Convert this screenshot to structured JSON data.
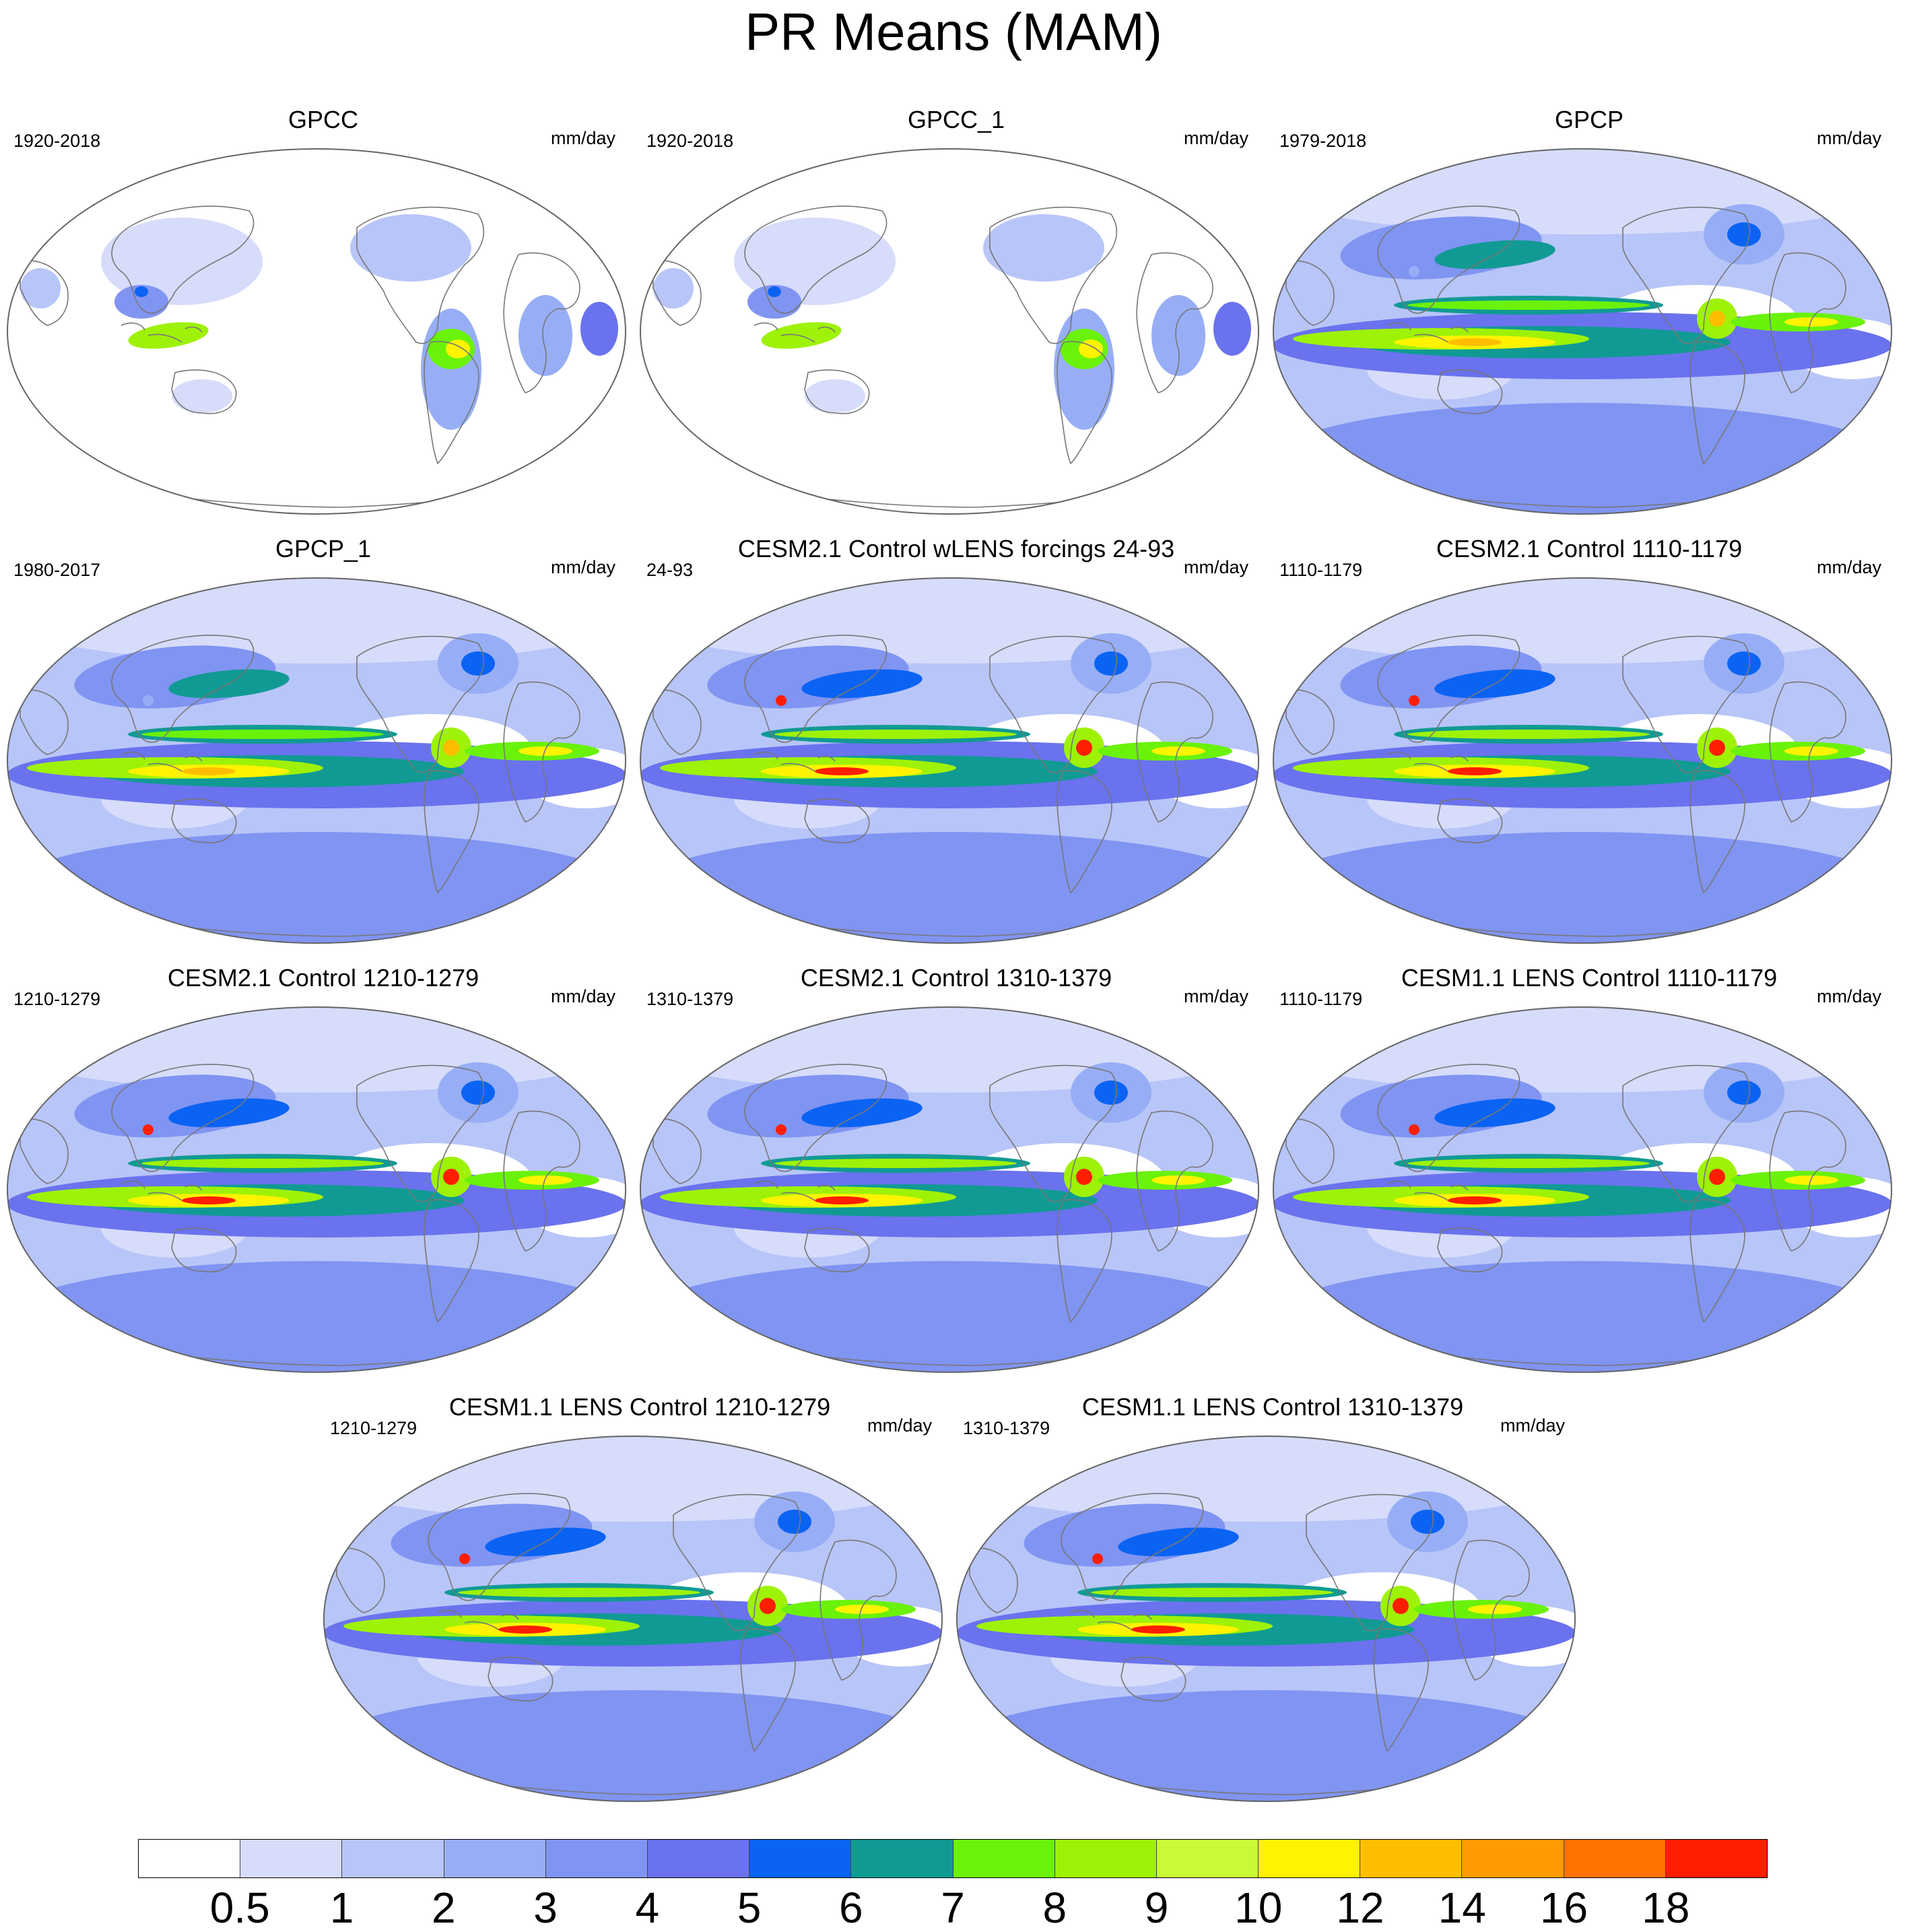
{
  "title": "PR Means (MAM)",
  "panels": [
    {
      "title": "GPCC",
      "left": "1920-2018",
      "right": "mm/day",
      "style": "land"
    },
    {
      "title": "GPCC_1",
      "left": "1920-2018",
      "right": "mm/day",
      "style": "land"
    },
    {
      "title": "GPCP",
      "left": "1979-2018",
      "right": "mm/day",
      "style": "obs"
    },
    {
      "title": "GPCP_1",
      "left": "1980-2017",
      "right": "mm/day",
      "style": "obs"
    },
    {
      "title": "CESM2.1 Control wLENS forcings 24-93",
      "left": "24-93",
      "right": "mm/day",
      "style": "model"
    },
    {
      "title": "CESM2.1 Control 1110-1179",
      "left": "1110-1179",
      "right": "mm/day",
      "style": "model"
    },
    {
      "title": "CESM2.1 Control 1210-1279",
      "left": "1210-1279",
      "right": "mm/day",
      "style": "model"
    },
    {
      "title": "CESM2.1 Control 1310-1379",
      "left": "1310-1379",
      "right": "mm/day",
      "style": "model"
    },
    {
      "title": "CESM1.1 LENS Control 1110-1179",
      "left": "1110-1179",
      "right": "mm/day",
      "style": "model"
    },
    {
      "title": "CESM1.1 LENS Control 1210-1279",
      "left": "1210-1279",
      "right": "mm/day",
      "style": "model"
    },
    {
      "title": "CESM1.1 LENS Control 1310-1379",
      "left": "1310-1379",
      "right": "mm/day",
      "style": "model"
    }
  ],
  "colorbar": {
    "labels": [
      "0.5",
      "1",
      "2",
      "3",
      "4",
      "5",
      "6",
      "7",
      "8",
      "9",
      "10",
      "12",
      "14",
      "16",
      "18"
    ],
    "colors": [
      "#ffffff",
      "#d6dcfa",
      "#b8c5f8",
      "#97aef6",
      "#8094f2",
      "#6a72ee",
      "#0b63f3",
      "#119a94",
      "#6af20a",
      "#9ef207",
      "#c8fb36",
      "#fff300",
      "#ffbe00",
      "#ff9a00",
      "#ff7300",
      "#ff1e00"
    ]
  }
}
